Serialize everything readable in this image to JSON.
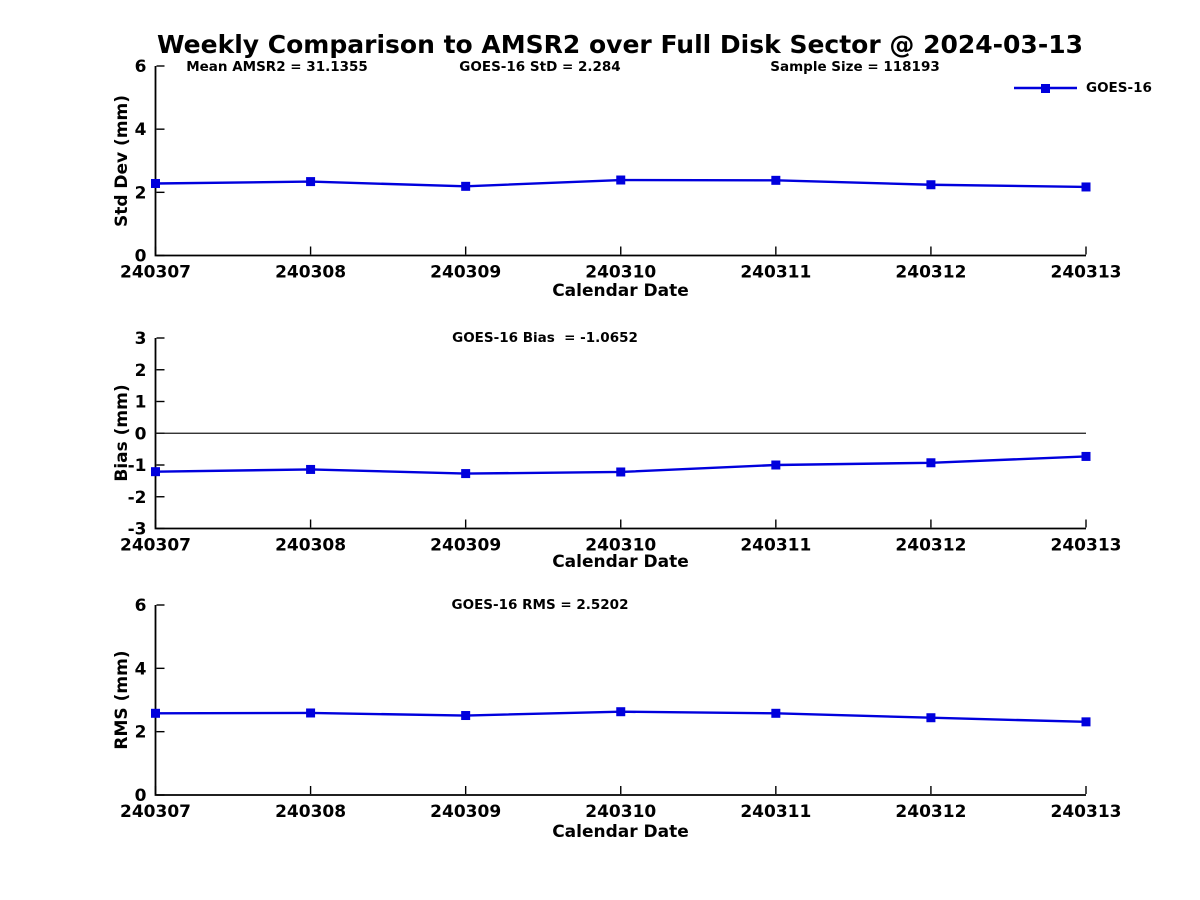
{
  "figure": {
    "title": "Weekly Comparison to AMSR2 over Full Disk Sector @ 2024-03-13",
    "background": "#ffffff"
  },
  "colors": {
    "series": "#0000dd",
    "axis": "#000000",
    "zero_line": "#1a1a1a",
    "text": "#000000"
  },
  "chart_data": [
    {
      "type": "line",
      "panel": "std-dev",
      "annotations": [
        "Mean AMSR2 = 31.1355",
        "GOES-16 StD = 2.284",
        "Sample Size = 118193"
      ],
      "categories": [
        "240307",
        "240308",
        "240309",
        "240310",
        "240311",
        "240312",
        "240313"
      ],
      "series": [
        {
          "name": "GOES-16",
          "marker": "square",
          "values": [
            2.28,
            2.34,
            2.19,
            2.39,
            2.38,
            2.24,
            2.17
          ]
        }
      ],
      "xlabel": "Calendar Date",
      "ylabel": "Std Dev (mm)",
      "ylim": [
        0,
        6
      ],
      "yticks": [
        0,
        2,
        4,
        6
      ],
      "grid": false,
      "legend_position": "top-right"
    },
    {
      "type": "line",
      "panel": "bias",
      "title": "GOES-16 Bias  = -1.0652",
      "categories": [
        "240307",
        "240308",
        "240309",
        "240310",
        "240311",
        "240312",
        "240313"
      ],
      "series": [
        {
          "name": "GOES-16",
          "marker": "square",
          "values": [
            -1.21,
            -1.14,
            -1.27,
            -1.22,
            -1.0,
            -0.93,
            -0.73
          ]
        }
      ],
      "xlabel": "Calendar Date",
      "ylabel": "Bias (mm)",
      "ylim": [
        -3,
        3
      ],
      "yticks": [
        3,
        2,
        1,
        0,
        -1,
        -2,
        -3
      ],
      "zero_line": true,
      "grid": false
    },
    {
      "type": "line",
      "panel": "rms",
      "title": "GOES-16 RMS = 2.5202",
      "categories": [
        "240307",
        "240308",
        "240309",
        "240310",
        "240311",
        "240312",
        "240313"
      ],
      "series": [
        {
          "name": "GOES-16",
          "marker": "square",
          "values": [
            2.58,
            2.59,
            2.51,
            2.63,
            2.58,
            2.44,
            2.31
          ]
        }
      ],
      "xlabel": "Calendar Date",
      "ylabel": "RMS (mm)",
      "ylim": [
        0,
        6
      ],
      "yticks": [
        0,
        2,
        4,
        6
      ],
      "grid": false
    }
  ]
}
